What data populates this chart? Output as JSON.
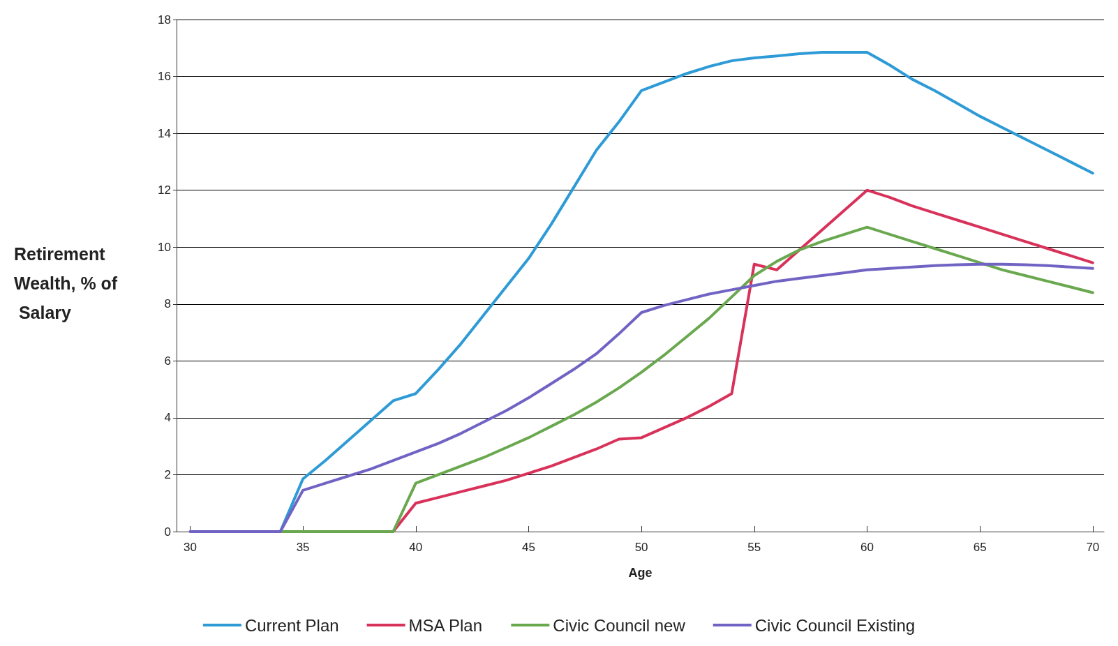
{
  "chart_data": {
    "type": "line",
    "xlabel": "Age",
    "ylabel": "Retirement Wealth, % of Salary",
    "x": [
      30,
      31,
      32,
      33,
      34,
      35,
      36,
      37,
      38,
      39,
      40,
      41,
      42,
      43,
      44,
      45,
      46,
      47,
      48,
      49,
      50,
      51,
      52,
      53,
      54,
      55,
      56,
      57,
      58,
      59,
      60,
      61,
      62,
      63,
      64,
      65,
      66,
      67,
      68,
      69,
      70
    ],
    "xlim": [
      29.4,
      70.5
    ],
    "xticks": [
      30,
      35,
      40,
      45,
      50,
      55,
      60,
      65,
      70
    ],
    "ylim": [
      0,
      18
    ],
    "yticks": [
      0,
      2,
      4,
      6,
      8,
      10,
      12,
      14,
      16,
      18
    ],
    "grid": "y",
    "legend": "bottom",
    "marker": "none",
    "line_style": "solid",
    "series": [
      {
        "name": "Current Plan",
        "color": "#2e9bd6",
        "values": [
          null,
          null,
          null,
          0,
          0,
          1.85,
          2.5,
          3.2,
          3.9,
          4.6,
          4.85,
          5.7,
          6.6,
          7.6,
          8.6,
          9.6,
          10.8,
          12.1,
          13.4,
          14.4,
          15.5,
          15.8,
          16.1,
          16.35,
          16.55,
          16.65,
          16.72,
          16.8,
          16.85,
          16.85,
          16.85,
          16.4,
          15.9,
          15.5,
          15.05,
          14.6,
          14.2,
          13.8,
          13.4,
          13.0,
          12.6
        ]
      },
      {
        "name": "MSA Plan",
        "color": "#d8325a",
        "values": [
          null,
          null,
          null,
          null,
          null,
          null,
          null,
          null,
          0,
          0,
          1.0,
          1.2,
          1.4,
          1.6,
          1.8,
          2.05,
          2.3,
          2.6,
          2.9,
          3.25,
          3.3,
          3.65,
          4.0,
          4.4,
          4.85,
          9.4,
          9.2,
          9.9,
          10.6,
          11.3,
          12.0,
          11.75,
          11.45,
          11.2,
          10.95,
          10.7,
          10.45,
          10.2,
          9.95,
          9.7,
          9.45
        ]
      },
      {
        "name": "Civic Council new",
        "color": "#6aa84f",
        "values": [
          null,
          null,
          null,
          0,
          0,
          0,
          0,
          0,
          0,
          0,
          1.7,
          2.0,
          2.3,
          2.6,
          2.95,
          3.3,
          3.7,
          4.1,
          4.55,
          5.05,
          5.6,
          6.2,
          6.85,
          7.5,
          8.25,
          9.0,
          9.5,
          9.9,
          10.2,
          10.45,
          10.7,
          10.45,
          10.2,
          9.95,
          9.7,
          9.45,
          9.2,
          9.0,
          8.8,
          8.6,
          8.4
        ]
      },
      {
        "name": "Civic Council Existing",
        "color": "#7063c4",
        "values": [
          0,
          0,
          0,
          0,
          0,
          1.45,
          1.7,
          1.95,
          2.2,
          2.5,
          2.8,
          3.1,
          3.45,
          3.85,
          4.25,
          4.7,
          5.2,
          5.7,
          6.25,
          6.95,
          7.7,
          7.95,
          8.15,
          8.35,
          8.5,
          8.65,
          8.8,
          8.9,
          9.0,
          9.1,
          9.2,
          9.25,
          9.3,
          9.35,
          9.38,
          9.4,
          9.4,
          9.38,
          9.35,
          9.3,
          9.25
        ]
      }
    ]
  }
}
